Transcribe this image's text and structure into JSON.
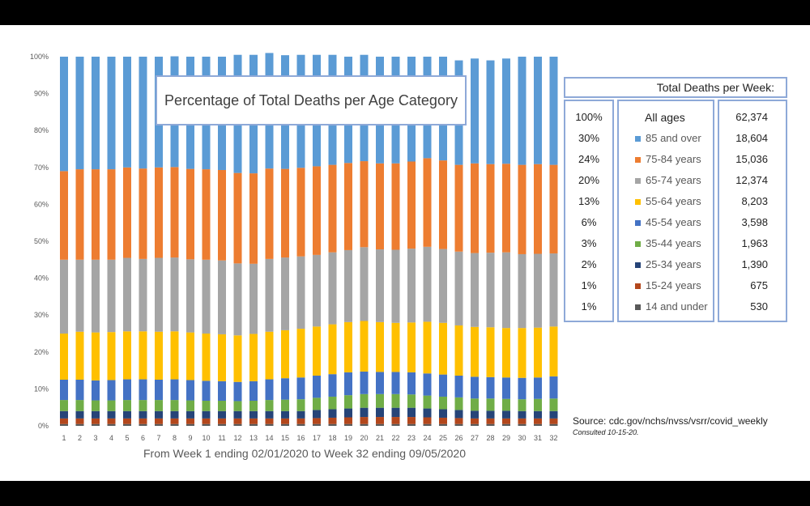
{
  "chart_data": {
    "type": "bar",
    "stacked": true,
    "title": "Percentage of Total  Deaths per Age Category",
    "xlabel": "From Week 1 ending 02/01/2020 to Week 32 ending 09/05/2020",
    "ylabel": "",
    "ylim": [
      0,
      100
    ],
    "y_ticks": [
      "0%",
      "10%",
      "20%",
      "30%",
      "40%",
      "50%",
      "60%",
      "70%",
      "80%",
      "90%",
      "100%"
    ],
    "categories": [
      "1",
      "2",
      "3",
      "4",
      "5",
      "6",
      "7",
      "8",
      "9",
      "10",
      "11",
      "12",
      "13",
      "14",
      "15",
      "16",
      "17",
      "18",
      "19",
      "20",
      "21",
      "22",
      "23",
      "24",
      "25",
      "26",
      "27",
      "28",
      "29",
      "30",
      "31",
      "32"
    ],
    "series": [
      {
        "name": "14 and under",
        "color": "#595959",
        "values": [
          0.5,
          0.5,
          0.5,
          0.5,
          0.5,
          0.5,
          0.5,
          0.5,
          0.5,
          0.5,
          0.5,
          0.5,
          0.5,
          0.5,
          0.5,
          0.5,
          0.5,
          0.5,
          0.5,
          0.5,
          0.5,
          0.5,
          0.5,
          0.5,
          0.5,
          0.5,
          0.5,
          0.5,
          0.5,
          0.5,
          0.5,
          0.5
        ]
      },
      {
        "name": "15-24 years",
        "color": "#b3471c",
        "values": [
          1.5,
          1.5,
          1.5,
          1.5,
          1.5,
          1.5,
          1.5,
          1.5,
          1.5,
          1.5,
          1.5,
          1.5,
          1.5,
          1.5,
          1.5,
          1.5,
          1.6,
          1.7,
          1.8,
          1.9,
          1.9,
          1.9,
          1.9,
          1.8,
          1.7,
          1.6,
          1.5,
          1.5,
          1.5,
          1.5,
          1.5,
          1.5
        ]
      },
      {
        "name": "25-34 years",
        "color": "#264478",
        "values": [
          2,
          2,
          2,
          2,
          2,
          2,
          2,
          2,
          2,
          2,
          2,
          2,
          2,
          2,
          2,
          2,
          2.2,
          2.3,
          2.4,
          2.5,
          2.5,
          2.5,
          2.5,
          2.4,
          2.3,
          2.2,
          2.1,
          2.1,
          2.1,
          2,
          2,
          2
        ]
      },
      {
        "name": "35-44 years",
        "color": "#70ad47",
        "values": [
          3,
          3,
          2.9,
          2.9,
          3,
          3,
          3,
          3,
          2.9,
          2.8,
          2.8,
          2.7,
          2.8,
          3,
          3.1,
          3.2,
          3.3,
          3.4,
          3.6,
          3.7,
          3.7,
          3.7,
          3.6,
          3.5,
          3.4,
          3.4,
          3.3,
          3.3,
          3.2,
          3.2,
          3.3,
          3.4
        ]
      },
      {
        "name": "45-54 years",
        "color": "#4472c4",
        "values": [
          5.5,
          5.5,
          5.4,
          5.5,
          5.6,
          5.6,
          5.5,
          5.6,
          5.5,
          5.4,
          5.3,
          5.2,
          5.3,
          5.6,
          5.8,
          5.9,
          6,
          6.1,
          6.2,
          6.1,
          6,
          6,
          6,
          6,
          6,
          5.9,
          5.9,
          5.8,
          5.8,
          5.8,
          5.8,
          6
        ]
      },
      {
        "name": "55-64 years",
        "color": "#ffc000",
        "values": [
          12.5,
          13,
          13,
          13,
          13,
          13,
          13,
          13,
          12.9,
          12.8,
          12.7,
          12.6,
          12.8,
          12.9,
          13,
          13.2,
          13.3,
          13.5,
          13.6,
          13.7,
          13.5,
          13.3,
          13.5,
          14,
          14,
          13.6,
          13.5,
          13.5,
          13.4,
          13.5,
          13.5,
          13.5
        ]
      },
      {
        "name": "65-74 years",
        "color": "#a5a5a5",
        "values": [
          20,
          19.5,
          19.7,
          19.6,
          19.9,
          19.6,
          20,
          20,
          19.8,
          20,
          20,
          19.5,
          19,
          19.7,
          19.7,
          19.6,
          19.4,
          19.5,
          19.5,
          20,
          19.7,
          19.8,
          20,
          20.3,
          20,
          20,
          20,
          20.2,
          20.5,
          20,
          20,
          19.8
        ]
      },
      {
        "name": "75-84 years",
        "color": "#ed7d31",
        "values": [
          24,
          24.5,
          24.5,
          24.5,
          24.5,
          24.5,
          24.5,
          24.5,
          24.5,
          24.5,
          24.5,
          24.5,
          24.5,
          24.5,
          24,
          24,
          24,
          23.7,
          23.6,
          23.3,
          23.3,
          23.4,
          23.6,
          24,
          24,
          23.5,
          24.3,
          24,
          24,
          24.2,
          24.3,
          24
        ]
      },
      {
        "name": "85 and over",
        "color": "#5b9bd5",
        "values": [
          31,
          30.5,
          30.5,
          30.5,
          30,
          30.3,
          30,
          30,
          30.4,
          30.5,
          30.7,
          32,
          32.1,
          31.3,
          30.8,
          30.6,
          30.2,
          29.8,
          28.8,
          28.8,
          28.9,
          28.9,
          28.4,
          27.5,
          28.1,
          28.3,
          28.4,
          28.1,
          28.5,
          29.3,
          29.1,
          29.3
        ]
      }
    ]
  },
  "table": {
    "header": "Total Deaths per Week:",
    "all_ages_label": "All ages",
    "all_ages_pct": "100%",
    "all_ages_total": "62,374",
    "rows": [
      {
        "pct": "30%",
        "label": "85 and over",
        "total": "18,604",
        "color": "#5b9bd5"
      },
      {
        "pct": "24%",
        "label": "75-84 years",
        "total": "15,036",
        "color": "#ed7d31"
      },
      {
        "pct": "20%",
        "label": "65-74 years",
        "total": "12,374",
        "color": "#a5a5a5"
      },
      {
        "pct": "13%",
        "label": "55-64 years",
        "total": "8,203",
        "color": "#ffc000"
      },
      {
        "pct": "6%",
        "label": "45-54 years",
        "total": "3,598",
        "color": "#4472c4"
      },
      {
        "pct": "3%",
        "label": "35-44 years",
        "total": "1,963",
        "color": "#70ad47"
      },
      {
        "pct": "2%",
        "label": "25-34 years",
        "total": "1,390",
        "color": "#264478"
      },
      {
        "pct": "1%",
        "label": "15-24 years",
        "total": "675",
        "color": "#b3471c"
      },
      {
        "pct": "1%",
        "label": "14 and under",
        "total": "530",
        "color": "#595959"
      }
    ]
  },
  "source": {
    "text": "Source: cdc.gov/nchs/nvss/vsrr/covid_weekly",
    "consulted": "Consulted 10-15-20."
  }
}
